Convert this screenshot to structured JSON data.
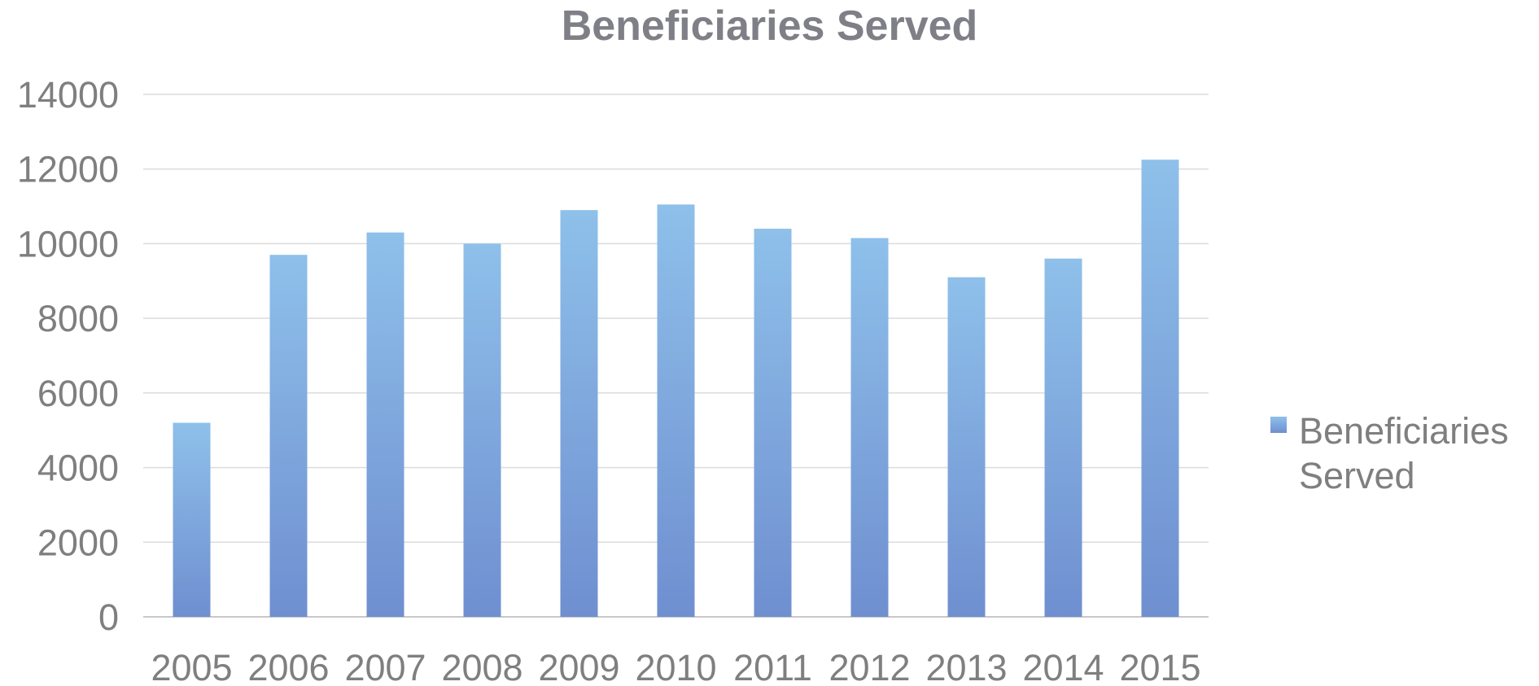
{
  "chart_data": {
    "type": "bar",
    "title": "Beneficiaries Served",
    "xlabel": "",
    "ylabel": "",
    "categories": [
      "2005",
      "2006",
      "2007",
      "2008",
      "2009",
      "2010",
      "2011",
      "2012",
      "2013",
      "2014",
      "2015"
    ],
    "series": [
      {
        "name": "Beneficiaries Served",
        "values": [
          5200,
          9700,
          10300,
          10000,
          10900,
          11050,
          10400,
          10150,
          9100,
          9600,
          12250
        ]
      }
    ],
    "ylim": [
      0,
      14000
    ],
    "yticks": [
      "0",
      "2000",
      "4000",
      "6000",
      "8000",
      "10000",
      "12000",
      "14000"
    ],
    "grid": true,
    "legend_position": "right",
    "bar_color_top": "#8ec0ea",
    "bar_color_bottom": "#6f8fd0"
  }
}
